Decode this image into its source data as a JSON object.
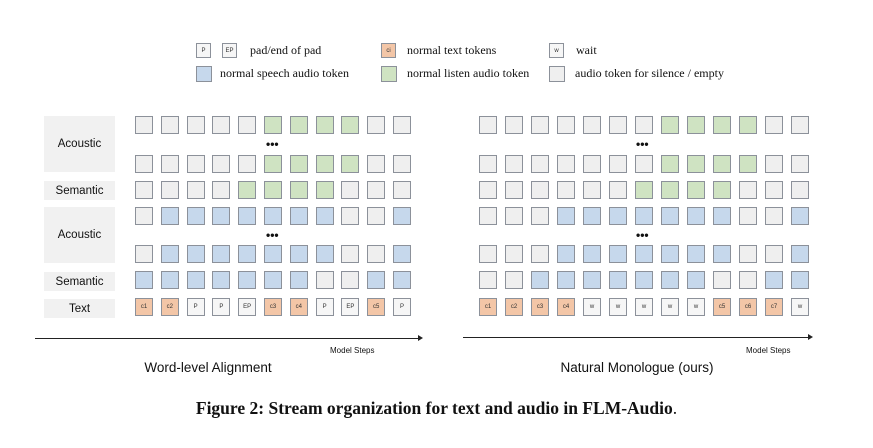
{
  "legend": {
    "pad_tokens": [
      "P",
      "EP"
    ],
    "pad_label": "pad/end of pad",
    "text_token": "ci",
    "text_label": "normal text tokens",
    "wait_token": "w",
    "wait_label": "wait",
    "speech_label": "normal speech audio token",
    "listen_label": "normal listen audio token",
    "silence_label": "audio token for silence / empty"
  },
  "colors": {
    "silence": "#efefef",
    "speech": "#c6d8ec",
    "listen": "#cfe3c2",
    "text": "#f3c6a7",
    "border": "#8c919a"
  },
  "row_labels": [
    "Acoustic",
    "Semantic",
    "Acoustic",
    "Semantic",
    "Text"
  ],
  "ellipsis": "•••",
  "left": {
    "title": "Word-level Alignment",
    "axis_label": "Model Steps",
    "rows": [
      "eeeeeggggee",
      "eeeeeggggee",
      "eeeeggggeee",
      "ebbbbbbbeeb",
      "ebbbbbbbeeb",
      "bbbbbbbeebb"
    ],
    "text_tokens": [
      "c1",
      "c2",
      "P",
      "P",
      "EP",
      "c3",
      "c4",
      "P",
      "EP",
      "c5",
      "P"
    ]
  },
  "right": {
    "title": "Natural Monologue (ours)",
    "axis_label": "Model Steps",
    "rows": [
      "eeeeeeeggggee",
      "eeeeeeeggggee",
      "eeeeeeggggeee",
      "eeebbbbbbbeeb",
      "eeebbbbbbbeeb",
      "eebbbbbbbeebb"
    ],
    "text_tokens": [
      "c1",
      "c2",
      "c3",
      "c4",
      "w",
      "w",
      "w",
      "w",
      "w",
      "c5",
      "c6",
      "c7",
      "w"
    ]
  },
  "caption": {
    "main": "Figure 2: Stream organization for text and audio in FLM-Audio",
    "end": "."
  }
}
